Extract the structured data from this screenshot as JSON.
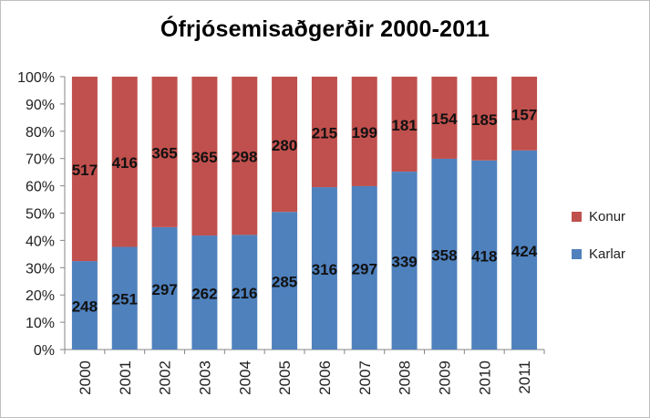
{
  "chart_data": {
    "type": "bar",
    "stacked": "percent",
    "title": "Ófrjósemisaðgerðir 2000-2011",
    "categories": [
      "2000",
      "2001",
      "2002",
      "2003",
      "2004",
      "2005",
      "2006",
      "2007",
      "2008",
      "2009",
      "2010",
      "2011"
    ],
    "series": [
      {
        "name": "Karlar",
        "color": "#4f81bd",
        "values": [
          248,
          251,
          297,
          262,
          216,
          285,
          316,
          297,
          339,
          358,
          418,
          424
        ]
      },
      {
        "name": "Konur",
        "color": "#c0504d",
        "values": [
          517,
          416,
          365,
          365,
          298,
          280,
          215,
          199,
          181,
          154,
          185,
          157
        ]
      }
    ],
    "ylim": [
      0,
      100
    ],
    "yticks": [
      "0%",
      "10%",
      "20%",
      "30%",
      "40%",
      "50%",
      "60%",
      "70%",
      "80%",
      "90%",
      "100%"
    ],
    "grid": false,
    "legend_position": "right",
    "legend_order": [
      "Konur",
      "Karlar"
    ]
  }
}
